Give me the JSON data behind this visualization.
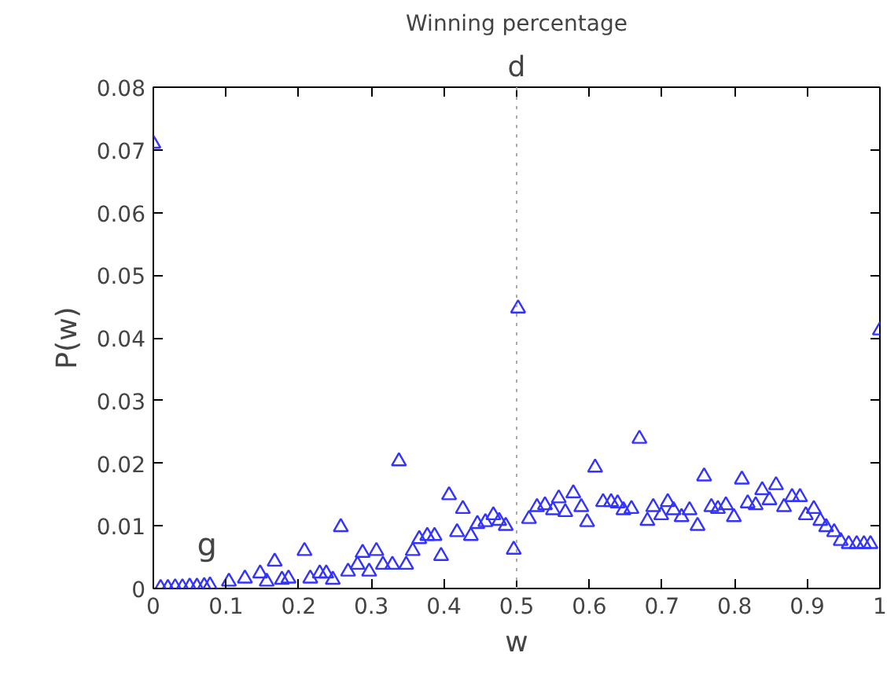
{
  "chart_data": {
    "type": "scatter",
    "title": "Winning percentage",
    "xlabel": "w",
    "ylabel": "P(w)",
    "annotations": [
      "d",
      "g"
    ],
    "x": [
      0,
      0.01,
      0.02,
      0.03,
      0.04,
      0.05,
      0.06,
      0.07,
      0.078,
      0.104,
      0.126,
      0.147,
      0.156,
      0.167,
      0.177,
      0.186,
      0.208,
      0.216,
      0.229,
      0.238,
      0.247,
      0.258,
      0.268,
      0.281,
      0.288,
      0.297,
      0.307,
      0.316,
      0.329,
      0.338,
      0.348,
      0.357,
      0.366,
      0.377,
      0.387,
      0.396,
      0.407,
      0.418,
      0.426,
      0.437,
      0.446,
      0.457,
      0.468,
      0.476,
      0.485,
      0.496,
      0.502,
      0.517,
      0.528,
      0.539,
      0.55,
      0.558,
      0.567,
      0.578,
      0.589,
      0.597,
      0.608,
      0.619,
      0.63,
      0.639,
      0.647,
      0.658,
      0.669,
      0.68,
      0.688,
      0.699,
      0.708,
      0.716,
      0.727,
      0.738,
      0.749,
      0.758,
      0.768,
      0.777,
      0.788,
      0.799,
      0.81,
      0.818,
      0.829,
      0.838,
      0.848,
      0.857,
      0.868,
      0.879,
      0.89,
      0.898,
      0.909,
      0.918,
      0.926,
      0.937,
      0.946,
      0.957,
      0.968,
      0.978,
      0.987,
      1
    ],
    "values": [
      0.071,
      0.0001,
      0.0001,
      0.0002,
      0.0002,
      0.0003,
      0.0003,
      0.0004,
      0.0005,
      0.0011,
      0.0016,
      0.0024,
      0.0011,
      0.0043,
      0.0014,
      0.0016,
      0.006,
      0.0016,
      0.0024,
      0.0024,
      0.0014,
      0.0098,
      0.0027,
      0.0038,
      0.0057,
      0.0027,
      0.006,
      0.0038,
      0.0038,
      0.0203,
      0.0038,
      0.006,
      0.0079,
      0.0084,
      0.0084,
      0.0052,
      0.0149,
      0.009,
      0.0127,
      0.0084,
      0.0103,
      0.0106,
      0.0117,
      0.0108,
      0.01,
      0.0062,
      0.0447,
      0.0111,
      0.013,
      0.0133,
      0.0125,
      0.0144,
      0.0122,
      0.0152,
      0.013,
      0.0106,
      0.0193,
      0.0138,
      0.0138,
      0.0136,
      0.0125,
      0.0127,
      0.0239,
      0.0108,
      0.013,
      0.0117,
      0.0138,
      0.0125,
      0.0114,
      0.0125,
      0.01,
      0.0179,
      0.013,
      0.0127,
      0.0133,
      0.0114,
      0.0174,
      0.0136,
      0.0133,
      0.0157,
      0.0141,
      0.0165,
      0.013,
      0.0146,
      0.0146,
      0.0117,
      0.0127,
      0.0108,
      0.0098,
      0.009,
      0.0076,
      0.0071,
      0.0071,
      0.0071,
      0.0071,
      0.0412
    ],
    "color": "#3333ff",
    "marker": "triangle",
    "grid": false,
    "xlim": [
      0,
      1
    ],
    "ylim": [
      0,
      0.08
    ],
    "xticks": [
      0,
      0.1,
      0.2,
      0.3,
      0.4,
      0.5,
      0.6,
      0.7,
      0.8,
      0.9,
      1
    ],
    "yticks": [
      0,
      0.01,
      0.02,
      0.03,
      0.04,
      0.05,
      0.06,
      0.07,
      0.08
    ],
    "ref_lines": [
      {
        "axis": "x",
        "value": 0.5,
        "color": "#aaaaaa",
        "line_style": "dotted"
      }
    ]
  }
}
